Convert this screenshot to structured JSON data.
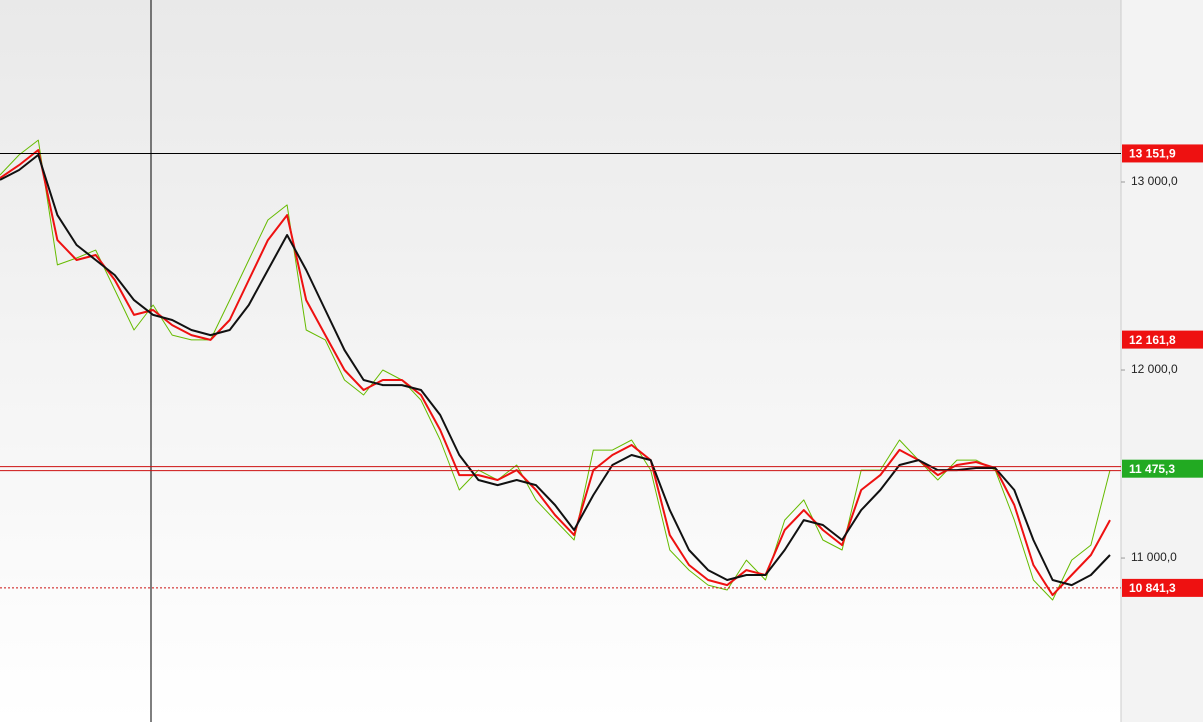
{
  "chart_data": {
    "type": "line",
    "categories": [
      null,
      null,
      null,
      null,
      null,
      null,
      null,
      null,
      null,
      null,
      null,
      null,
      null,
      null,
      null,
      null,
      null,
      null,
      null,
      null,
      null,
      null,
      null,
      null,
      null,
      null,
      null,
      null,
      null,
      null,
      null,
      null,
      null,
      null,
      null,
      null,
      null,
      null,
      null,
      null,
      null,
      null,
      null,
      null,
      null,
      null,
      null,
      null,
      null,
      null,
      null,
      null,
      null,
      null,
      null,
      null,
      null,
      null,
      null
    ],
    "series": [
      {
        "color": "#66bb00",
        "values": [
          13037,
          13144,
          13223,
          12559,
          12596,
          12638,
          12426,
          12213,
          12346,
          12186,
          12160,
          12160,
          12372,
          12585,
          12798,
          12878,
          12213,
          12160,
          11947,
          11867,
          12000,
          11947,
          11840,
          11628,
          11362,
          11468,
          11415,
          11495,
          11309,
          11202,
          11096,
          11574,
          11574,
          11628,
          11468,
          11043,
          10936,
          10856,
          10830,
          10989,
          10883,
          11202,
          11309,
          11096,
          11043,
          11468,
          11468,
          11628,
          11521,
          11415,
          11521,
          11521,
          11468,
          11202,
          10883,
          10777,
          10989,
          11069,
          11468
        ]
      },
      {
        "color": "#ee1111",
        "values": [
          13021,
          13090,
          13170,
          12691,
          12585,
          12612,
          12479,
          12293,
          12319,
          12239,
          12186,
          12160,
          12266,
          12479,
          12691,
          12824,
          12372,
          12186,
          12000,
          11894,
          11947,
          11947,
          11867,
          11681,
          11441,
          11441,
          11415,
          11468,
          11362,
          11229,
          11122,
          11468,
          11548,
          11601,
          11521,
          11122,
          10963,
          10883,
          10856,
          10936,
          10910,
          11149,
          11255,
          11149,
          11069,
          11362,
          11441,
          11575,
          11521,
          11441,
          11495,
          11511,
          11479,
          11282,
          10963,
          10803,
          10910,
          11016,
          11202
        ]
      },
      {
        "color": "#111111",
        "values": [
          13011,
          13064,
          13144,
          12824,
          12665,
          12585,
          12505,
          12372,
          12293,
          12266,
          12213,
          12186,
          12213,
          12346,
          12532,
          12718,
          12532,
          12319,
          12106,
          11947,
          11920,
          11920,
          11894,
          11761,
          11548,
          11415,
          11388,
          11415,
          11388,
          11282,
          11149,
          11335,
          11495,
          11548,
          11521,
          11255,
          11043,
          10936,
          10883,
          10910,
          10910,
          11043,
          11202,
          11176,
          11096,
          11255,
          11362,
          11495,
          11521,
          11468,
          11468,
          11479,
          11479,
          11362,
          11096,
          10883,
          10856,
          10910,
          11016
        ]
      }
    ],
    "ylim": [
      10128,
      13968
    ],
    "yticks": [
      {
        "value": 13000,
        "label": "13 000,0"
      },
      {
        "value": 12000,
        "label": "12 000,0"
      },
      {
        "value": 11000,
        "label": "11 000,0"
      }
    ],
    "annotations": [
      {
        "value": 13151.9,
        "label": "13 151,9",
        "color": "#ee1111",
        "style": "solid"
      },
      {
        "value": 12161.8,
        "label": "12 161,8",
        "color": "#ee1111"
      },
      {
        "value": 11475.3,
        "label": "11 475,3",
        "color": "#22aa22",
        "style": "double"
      },
      {
        "value": 10841.3,
        "label": "10 841,3",
        "color": "#ee1111",
        "style": "dotted"
      }
    ]
  }
}
